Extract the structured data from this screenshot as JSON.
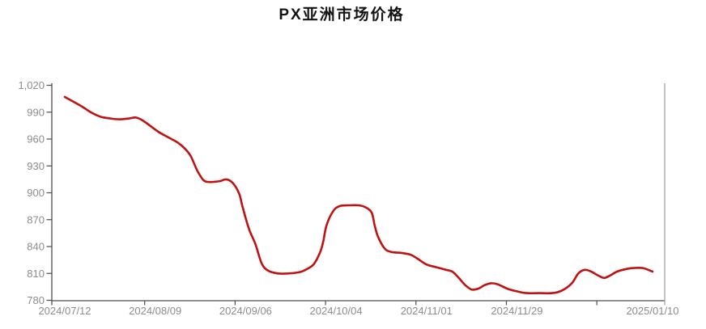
{
  "page": {
    "title": "PX亚洲市场价格",
    "background": "#ffffff"
  },
  "chart_data": {
    "type": "line",
    "title": "PX亚洲市场价格",
    "xlabel": "",
    "ylabel": "",
    "ylim": [
      780,
      1020
    ],
    "y_ticks": [
      780,
      810,
      840,
      870,
      900,
      930,
      960,
      990,
      1020
    ],
    "y_tick_labels": [
      "780",
      "810",
      "840",
      "870",
      "900",
      "930",
      "960",
      "990",
      "1,020"
    ],
    "x_tick_labels": [
      "2024/07/12",
      "2024/08/09",
      "2024/09/06",
      "2024/10/04",
      "2024/11/01",
      "2024/11/29",
      "2025/01/10"
    ],
    "x_tick_dates": [
      "2024/07/12",
      "2024/08/09",
      "2024/09/06",
      "2024/10/04",
      "2024/11/01",
      "2024/11/29",
      "2025/01/10"
    ],
    "x_unlabeled_tick_dates": [
      "2024/12/27"
    ],
    "x_range": [
      "2024/07/12",
      "2025/01/10"
    ],
    "grid": "off",
    "legend": "none",
    "line_color": "#c11212",
    "axis_color": "#4d4d4d",
    "right_border_color": "#9b9b9b",
    "tick_label_color": "#8c8c8c",
    "series": [
      {
        "name": "PX亚洲市场价格",
        "dates": [
          "2024/07/12",
          "2024/07/17",
          "2024/07/20",
          "2024/07/23",
          "2024/07/26",
          "2024/07/29",
          "2024/08/01",
          "2024/08/03",
          "2024/08/05",
          "2024/08/07",
          "2024/08/10",
          "2024/08/13",
          "2024/08/16",
          "2024/08/18",
          "2024/08/20",
          "2024/08/22",
          "2024/08/24",
          "2024/08/26",
          "2024/08/29",
          "2024/08/31",
          "2024/09/02",
          "2024/09/04",
          "2024/09/05",
          "2024/09/07",
          "2024/09/09",
          "2024/09/11",
          "2024/09/13",
          "2024/09/16",
          "2024/09/19",
          "2024/09/22",
          "2024/09/24",
          "2024/09/27",
          "2024/09/29",
          "2024/09/30",
          "2024/10/01",
          "2024/10/03",
          "2024/10/05",
          "2024/10/08",
          "2024/10/11",
          "2024/10/13",
          "2024/10/15",
          "2024/10/16",
          "2024/10/17",
          "2024/10/19",
          "2024/10/21",
          "2024/10/24",
          "2024/10/27",
          "2024/10/29",
          "2024/11/01",
          "2024/11/04",
          "2024/11/07",
          "2024/11/09",
          "2024/11/11",
          "2024/11/13",
          "2024/11/15",
          "2024/11/17",
          "2024/11/19",
          "2024/11/21",
          "2024/11/23",
          "2024/11/26",
          "2024/11/29",
          "2024/12/02",
          "2024/12/06",
          "2024/12/10",
          "2024/12/13",
          "2024/12/16",
          "2024/12/18",
          "2024/12/20",
          "2024/12/22",
          "2024/12/24",
          "2024/12/26",
          "2024/12/28",
          "2024/12/30",
          "2025/01/02",
          "2025/01/04",
          "2025/01/07",
          "2025/01/10"
        ],
        "values": [
          1007,
          997,
          990,
          985,
          983,
          982,
          983,
          984,
          981,
          976,
          968,
          962,
          956,
          950,
          941,
          925,
          914,
          912,
          913,
          915,
          911,
          899,
          885,
          860,
          843,
          821,
          813,
          810,
          810,
          811,
          813,
          820,
          833,
          845,
          863,
          879,
          885,
          886,
          886,
          884,
          878,
          863,
          851,
          838,
          834,
          833,
          831,
          827,
          820,
          817,
          814,
          812,
          805,
          797,
          792,
          793,
          797,
          799,
          798,
          793,
          790,
          788,
          788,
          788,
          791,
          799,
          810,
          814,
          812,
          808,
          805,
          808,
          812,
          815,
          816,
          816,
          812
        ]
      }
    ]
  }
}
